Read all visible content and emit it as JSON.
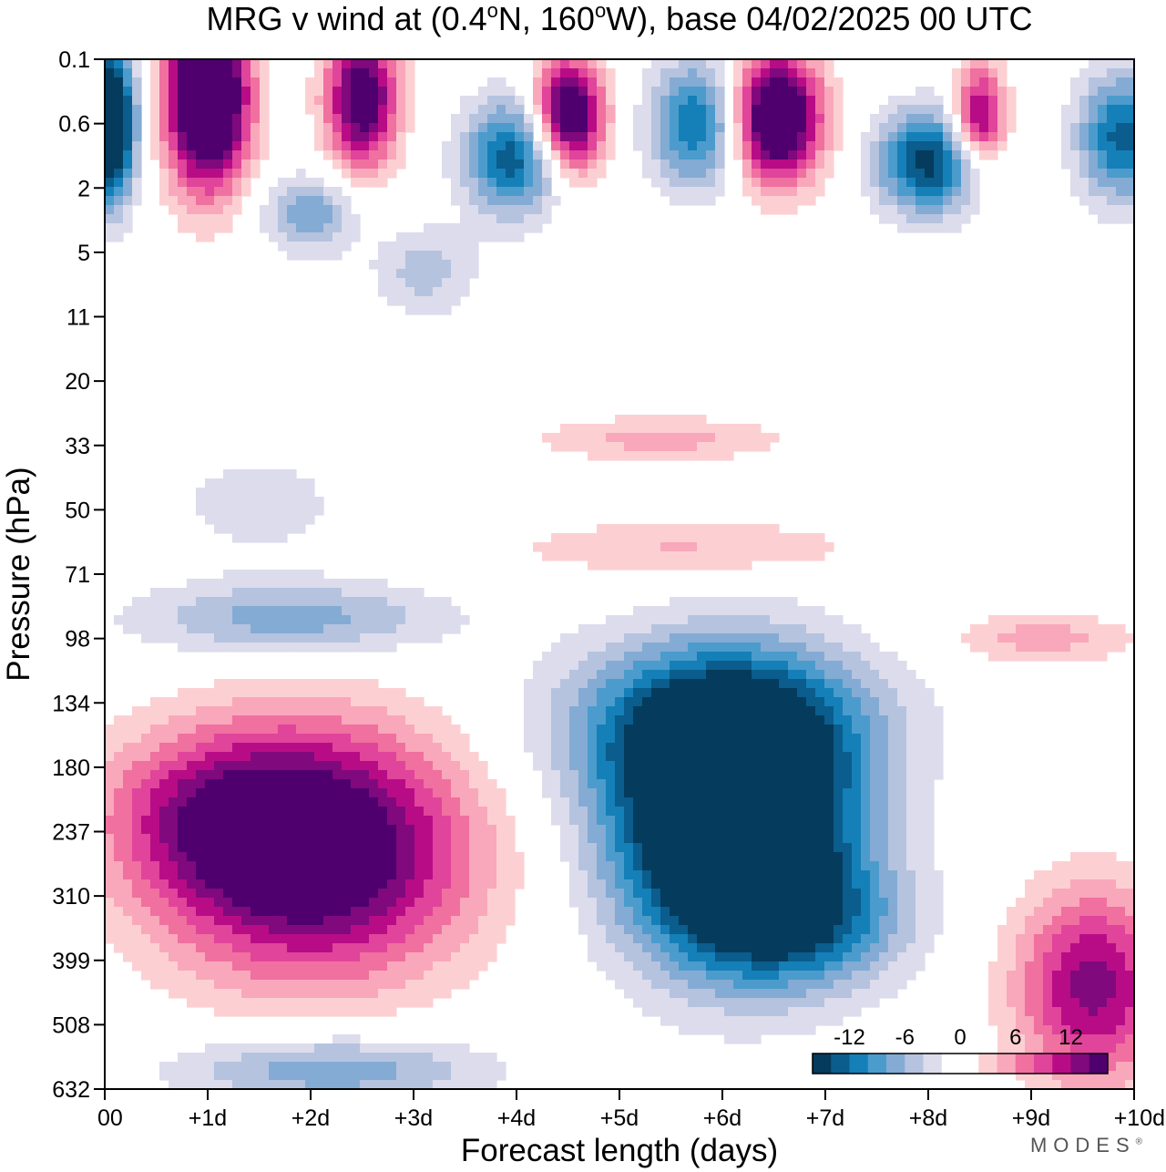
{
  "brand": "MODES",
  "brand_mark": "®",
  "chart_data": {
    "type": "heatmap",
    "title_parts": [
      "MRG v wind at (0.4",
      "o",
      "N, 160",
      "o",
      "W),  base 04/02/2025  00 UTC"
    ],
    "xlabel": "Forecast length (days)",
    "ylabel": "Pressure (hPa)",
    "x_ticks": [
      "00",
      "+1d",
      "+2d",
      "+3d",
      "+4d",
      "+5d",
      "+6d",
      "+7d",
      "+8d",
      "+9d",
      "+10d"
    ],
    "y_ticks": [
      "0.1",
      "0.6",
      "2",
      "5",
      "11",
      "20",
      "33",
      "50",
      "71",
      "98",
      "134",
      "180",
      "237",
      "310",
      "399",
      "508",
      "632"
    ],
    "xlim_days": [
      0,
      10
    ],
    "colorbar": {
      "labels": [
        "-12",
        "-6",
        "0",
        "6",
        "12"
      ],
      "levels": [
        -14,
        -12,
        -10,
        -8,
        -6,
        -4,
        -2,
        0,
        2,
        4,
        6,
        8,
        10,
        12,
        14
      ],
      "colors": [
        "#053b5c",
        "#0a5d8c",
        "#157fb8",
        "#4b9ccc",
        "#84abd3",
        "#b5c3df",
        "#dcdcec",
        "#ffffff",
        "#ffffff",
        "#fcd0d2",
        "#f9a7bb",
        "#f0709f",
        "#e0449b",
        "#b80c86",
        "#80097d",
        "#4f006e"
      ]
    },
    "features": [
      {
        "name": "neg-core-main",
        "day": 6.1,
        "level": 11.8,
        "wd": 1.15,
        "wl": 2.1,
        "amp": -26
      },
      {
        "name": "neg-main-upper",
        "day": 5.9,
        "level": 10.3,
        "wd": 1.6,
        "wl": 1.2,
        "amp": -9
      },
      {
        "name": "neg-main-lower",
        "day": 6.8,
        "level": 13.4,
        "wd": 1.0,
        "wl": 1.0,
        "amp": -9
      },
      {
        "name": "neg-mid-left",
        "day": 1.8,
        "level": 8.7,
        "wd": 1.5,
        "wl": 0.6,
        "amp": -7.5
      },
      {
        "name": "neg-bottom-left",
        "day": 2.2,
        "level": 15.7,
        "wd": 1.5,
        "wl": 0.55,
        "amp": -8
      },
      {
        "name": "neg-faint-33",
        "day": 1.5,
        "level": 6.9,
        "wd": 0.8,
        "wl": 0.8,
        "amp": -3.5
      },
      {
        "name": "pos-core-left",
        "day": 2.0,
        "level": 12.3,
        "wd": 1.5,
        "wl": 1.9,
        "amp": 19
      },
      {
        "name": "pos-ridge-left",
        "day": 1.0,
        "level": 11.7,
        "wd": 1.1,
        "wl": 1.2,
        "amp": 6
      },
      {
        "name": "pos-bottom-right",
        "day": 9.6,
        "level": 14.4,
        "wd": 0.75,
        "wl": 1.5,
        "amp": 13
      },
      {
        "name": "pos-band-50",
        "day": 5.7,
        "level": 7.6,
        "wd": 1.7,
        "wl": 0.45,
        "amp": 4.5
      },
      {
        "name": "pos-band-30",
        "day": 5.4,
        "level": 5.9,
        "wd": 1.2,
        "wl": 0.35,
        "amp": 5
      },
      {
        "name": "pos-right-98",
        "day": 9.1,
        "level": 9.0,
        "wd": 0.9,
        "wl": 0.4,
        "amp": 5
      },
      {
        "name": "pos-top-1",
        "day": 1.0,
        "level": 0.6,
        "wd": 0.4,
        "wl": 1.4,
        "amp": 24
      },
      {
        "name": "pos-top-2",
        "day": 2.5,
        "level": 0.6,
        "wd": 0.35,
        "wl": 1.1,
        "amp": 17
      },
      {
        "name": "pos-top-3",
        "day": 4.5,
        "level": 0.9,
        "wd": 0.35,
        "wl": 0.9,
        "amp": 20
      },
      {
        "name": "pos-top-4",
        "day": 6.5,
        "level": 0.9,
        "wd": 0.45,
        "wl": 1.0,
        "amp": 22
      },
      {
        "name": "pos-top-5",
        "day": 8.5,
        "level": 0.9,
        "wd": 0.25,
        "wl": 0.8,
        "amp": 14
      },
      {
        "name": "neg-top-1",
        "day": 0.05,
        "level": 1.0,
        "wd": 0.25,
        "wl": 1.2,
        "amp": -22
      },
      {
        "name": "neg-top-2",
        "day": 4.0,
        "level": 1.5,
        "wd": 0.5,
        "wl": 0.9,
        "amp": -14
      },
      {
        "name": "neg-top-3",
        "day": 5.8,
        "level": 1.0,
        "wd": 0.5,
        "wl": 1.0,
        "amp": -13
      },
      {
        "name": "neg-top-4",
        "day": 8.0,
        "level": 1.6,
        "wd": 0.5,
        "wl": 0.8,
        "amp": -15
      },
      {
        "name": "neg-top-5",
        "day": 9.9,
        "level": 1.2,
        "wd": 0.45,
        "wl": 1.0,
        "amp": -13
      },
      {
        "name": "neg-top-6",
        "day": 2.0,
        "level": 2.4,
        "wd": 0.45,
        "wl": 0.6,
        "amp": -8
      },
      {
        "name": "neg-top-7",
        "day": 3.1,
        "level": 3.3,
        "wd": 0.5,
        "wl": 0.7,
        "amp": -5
      }
    ]
  }
}
